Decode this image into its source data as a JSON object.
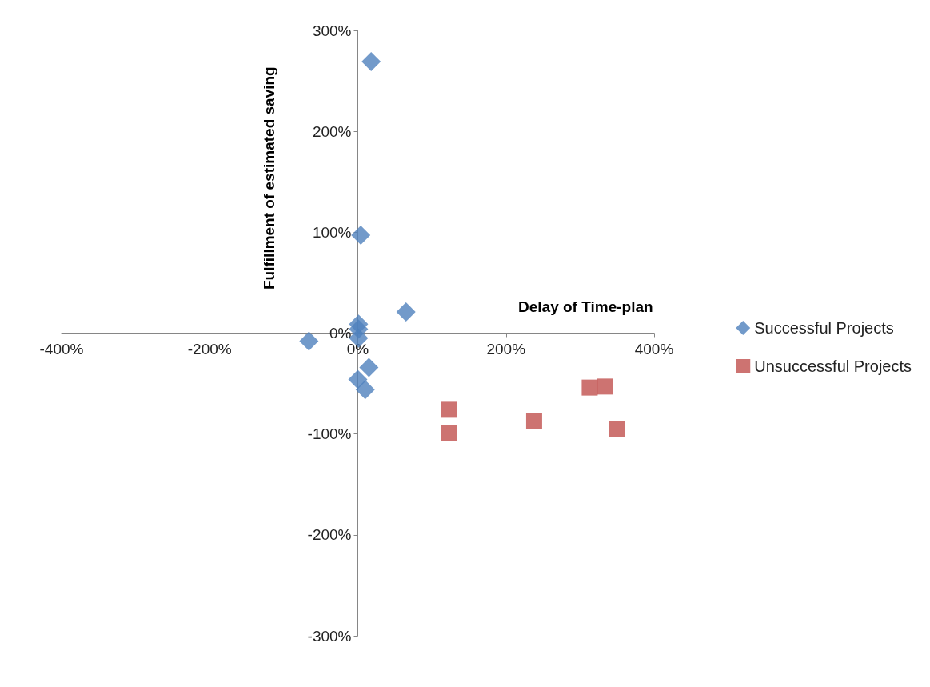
{
  "chart_data": {
    "type": "scatter",
    "xlabel": "Delay of Time-plan",
    "ylabel": "Fulfillment of estimated saving",
    "xlim": [
      -400,
      400
    ],
    "ylim": [
      -300,
      300
    ],
    "xticks": [
      {
        "value": -400,
        "label": "-400%"
      },
      {
        "value": -200,
        "label": "-200%"
      },
      {
        "value": 0,
        "label": "0%"
      },
      {
        "value": 200,
        "label": "200%"
      },
      {
        "value": 400,
        "label": "400%"
      }
    ],
    "yticks": [
      {
        "value": -300,
        "label": "-300%"
      },
      {
        "value": -200,
        "label": "-200%"
      },
      {
        "value": -100,
        "label": "-100%"
      },
      {
        "value": 0,
        "label": "0%"
      },
      {
        "value": 100,
        "label": "100%"
      },
      {
        "value": 200,
        "label": "200%"
      },
      {
        "value": 300,
        "label": "300%"
      }
    ],
    "grid": false,
    "legend": "right",
    "series": [
      {
        "name": "Successful Projects",
        "color": "#4f81bd",
        "marker": "diamond",
        "x": [
          18,
          4,
          65,
          1,
          1,
          1,
          -66,
          15,
          0,
          10
        ],
        "values": [
          269,
          97,
          21,
          9,
          4,
          -5,
          -8,
          -34,
          -46,
          -56
        ]
      },
      {
        "name": "Unsuccessful Projects",
        "color": "#c0504d",
        "marker": "square",
        "x": [
          123,
          123,
          238,
          313,
          334,
          350
        ],
        "values": [
          -76,
          -99,
          -87,
          -54,
          -53,
          -95
        ]
      }
    ]
  }
}
